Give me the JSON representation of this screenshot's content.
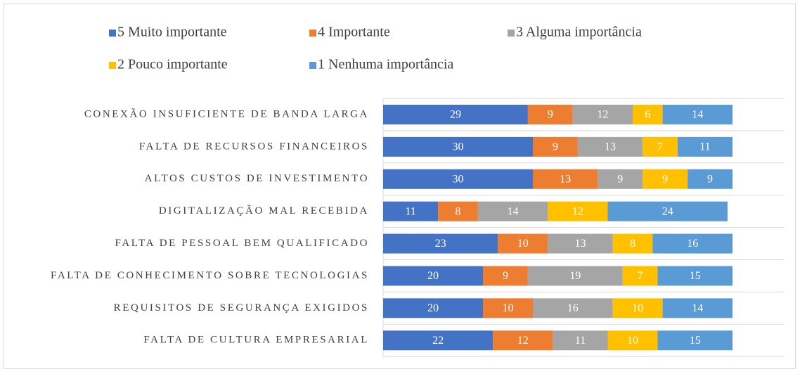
{
  "chart_data": {
    "type": "stacked_bar_horizontal",
    "categories": [
      "CONEXÃO INSUFICIENTE DE BANDA LARGA",
      "FALTA DE RECURSOS FINANCEIROS",
      "ALTOS CUSTOS DE INVESTIMENTO",
      "DIGITALIZAÇÃO MAL RECEBIDA",
      "FALTA DE PESSOAL BEM QUALIFICADO",
      "FALTA DE CONHECIMENTO SOBRE TECNOLOGIAS",
      "REQUISITOS DE SEGURANÇA EXIGIDOS",
      "FALTA DE CULTURA EMPRESARIAL"
    ],
    "series": [
      {
        "name": "5 Muito importante",
        "color": "#4472c4",
        "values": [
          29,
          30,
          30,
          11,
          23,
          20,
          20,
          22
        ]
      },
      {
        "name": "4 Importante",
        "color": "#ed7d31",
        "values": [
          9,
          9,
          13,
          8,
          10,
          9,
          10,
          12
        ]
      },
      {
        "name": "3 Alguma importância",
        "color": "#a5a5a5",
        "values": [
          12,
          13,
          9,
          14,
          13,
          19,
          16,
          11
        ]
      },
      {
        "name": "2 Pouco importante",
        "color": "#ffc000",
        "values": [
          6,
          7,
          9,
          12,
          8,
          7,
          10,
          10
        ]
      },
      {
        "name": "1 Nenhuma importância",
        "color": "#5b9bd5",
        "values": [
          14,
          11,
          9,
          24,
          16,
          15,
          14,
          15
        ]
      }
    ],
    "legend": "top"
  }
}
